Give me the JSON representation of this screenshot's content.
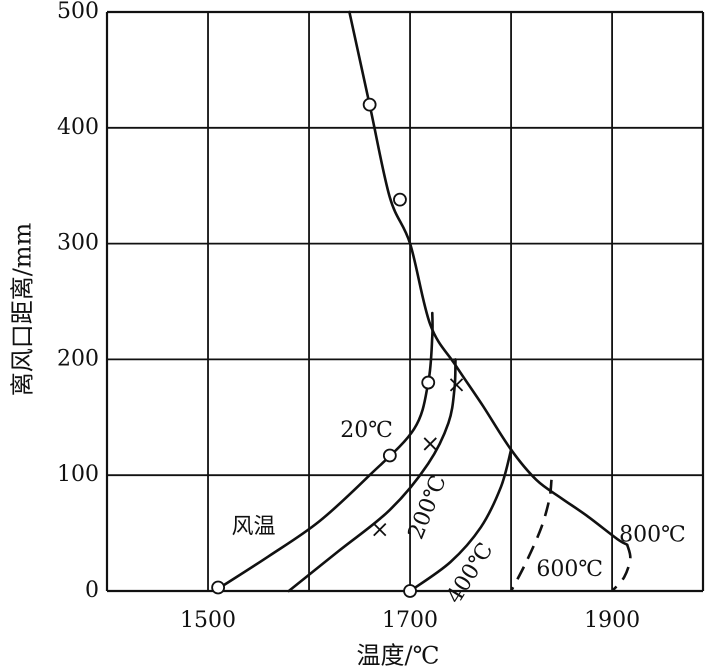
{
  "chart_data": {
    "type": "line",
    "xlabel": "温度/℃",
    "ylabel": "离风口距离/mm",
    "xlim": [
      1400,
      1990
    ],
    "ylim": [
      0,
      500
    ],
    "xticks": [
      1500,
      1700,
      1900
    ],
    "xtick_labels": [
      "1500",
      "1700",
      "1900"
    ],
    "yticks": [
      0,
      100,
      200,
      300,
      400,
      500
    ],
    "ytick_labels": [
      "0",
      "100",
      "200",
      "300",
      "400",
      "500"
    ],
    "grid": true,
    "grid_x": [
      1400,
      1500,
      1600,
      1700,
      1800,
      1900,
      1990
    ],
    "grid_y": [
      0,
      100,
      200,
      300,
      400,
      500
    ],
    "series": [
      {
        "name": "风温",
        "label": "风温",
        "style": "solid",
        "x": [
          1640,
          1660,
          1680,
          1700,
          1720,
          1745,
          1772,
          1800,
          1825,
          1850,
          1875,
          1905,
          1915
        ],
        "y": [
          500,
          420,
          340,
          300,
          230,
          195,
          160,
          122,
          96,
          80,
          65,
          45,
          40
        ]
      },
      {
        "name": "20℃",
        "label": "20℃",
        "style": "solid",
        "x": [
          1722,
          1722,
          1718,
          1704,
          1660,
          1610,
          1560,
          1512
        ],
        "y": [
          240,
          220,
          180,
          140,
          100,
          60,
          30,
          3
        ]
      },
      {
        "name": "200℃",
        "label": "200℃",
        "style": "solid",
        "x": [
          1745,
          1744,
          1738,
          1718,
          1680,
          1630,
          1580
        ],
        "y": [
          200,
          175,
          145,
          110,
          70,
          35,
          0
        ]
      },
      {
        "name": "400℃",
        "label": "400℃",
        "style": "solid",
        "x": [
          1800,
          1790,
          1770,
          1740,
          1700
        ],
        "y": [
          122,
          90,
          55,
          25,
          0
        ]
      },
      {
        "name": "600℃",
        "label": "600℃",
        "style": "dashed",
        "x": [
          1840,
          1838,
          1830,
          1815,
          1800
        ],
        "y": [
          96,
          80,
          55,
          25,
          0
        ]
      },
      {
        "name": "800℃",
        "label": "800℃",
        "style": "dashed",
        "x": [
          1915,
          1918,
          1912,
          1900
        ],
        "y": [
          40,
          28,
          12,
          0
        ]
      }
    ],
    "markers": {
      "circles": [
        {
          "x": 1660,
          "y": 420
        },
        {
          "x": 1690,
          "y": 338
        },
        {
          "x": 1718,
          "y": 180
        },
        {
          "x": 1680,
          "y": 117
        },
        {
          "x": 1510,
          "y": 3
        },
        {
          "x": 1700,
          "y": 0
        }
      ],
      "crosses": [
        {
          "x": 1746,
          "y": 178
        },
        {
          "x": 1720,
          "y": 127
        },
        {
          "x": 1670,
          "y": 53
        }
      ]
    },
    "curve_labels": [
      {
        "text": "风温",
        "x": 1545,
        "y": 55
      },
      {
        "text": "20℃",
        "x": 1657,
        "y": 138
      },
      {
        "text": "200℃",
        "x": 1718,
        "y": 72
      },
      {
        "text": "400℃",
        "x": 1760,
        "y": 15
      },
      {
        "text": "600℃",
        "x": 1858,
        "y": 18
      },
      {
        "text": "800℃",
        "x": 1940,
        "y": 48
      }
    ]
  }
}
